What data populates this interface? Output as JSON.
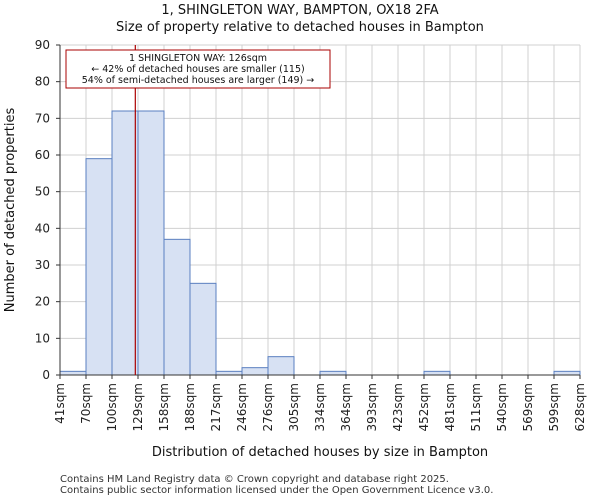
{
  "chart_data": {
    "type": "bar",
    "title": "1, SHINGLETON WAY, BAMPTON, OX18 2FA",
    "subtitle": "Size of property relative to detached houses in Bampton",
    "xlabel": "Distribution of detached houses by size in Bampton",
    "ylabel": "Number of detached properties",
    "ylim": [
      0,
      90
    ],
    "yticks": [
      0,
      10,
      20,
      30,
      40,
      50,
      60,
      70,
      80,
      90
    ],
    "grid": true,
    "bin_edges": [
      "41sqm",
      "70sqm",
      "100sqm",
      "129sqm",
      "158sqm",
      "188sqm",
      "217sqm",
      "246sqm",
      "276sqm",
      "305sqm",
      "334sqm",
      "364sqm",
      "393sqm",
      "423sqm",
      "452sqm",
      "481sqm",
      "511sqm",
      "540sqm",
      "569sqm",
      "599sqm",
      "628sqm"
    ],
    "values": [
      1,
      59,
      72,
      72,
      37,
      25,
      1,
      2,
      5,
      0,
      1,
      0,
      0,
      0,
      1,
      0,
      0,
      0,
      0,
      1
    ],
    "bar_fill": "#d7e1f3",
    "bar_stroke": "#5a7fc0",
    "marker": {
      "value_sqm": 126,
      "color": "#aa0000",
      "label_lines": [
        "1 SHINGLETON WAY: 126sqm",
        "← 42% of detached houses are smaller (115)",
        "54% of semi-detached houses are larger (149) →"
      ]
    }
  },
  "footer": {
    "line1": "Contains HM Land Registry data © Crown copyright and database right 2025.",
    "line2": "Contains public sector information licensed under the Open Government Licence v3.0."
  }
}
